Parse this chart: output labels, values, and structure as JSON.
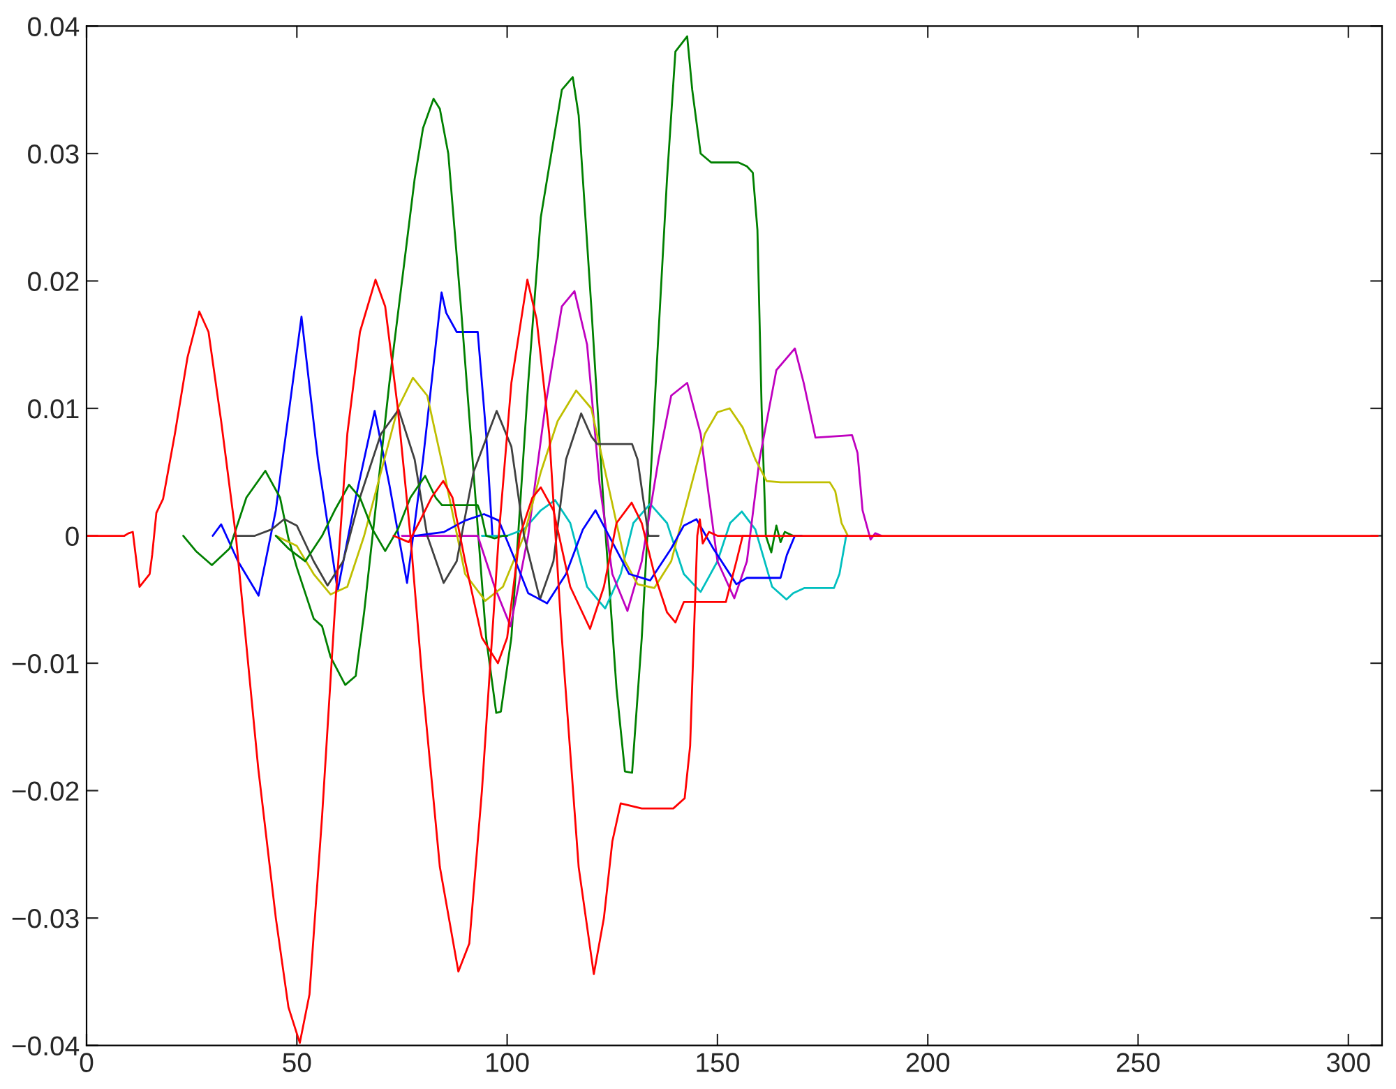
{
  "chart_data": {
    "type": "line",
    "xlim": [
      0,
      308
    ],
    "ylim": [
      -0.04,
      0.04
    ],
    "xticks": [
      0,
      50,
      100,
      150,
      200,
      250,
      300
    ],
    "yticks": [
      {
        "value": -0.04,
        "label": "−0.04"
      },
      {
        "value": -0.03,
        "label": "−0.03"
      },
      {
        "value": -0.02,
        "label": "−0.02"
      },
      {
        "value": -0.01,
        "label": "−0.01"
      },
      0,
      0.01,
      0.02,
      0.03,
      0.04
    ],
    "series": [
      {
        "color": "#0000ff",
        "x": [
          30,
          32,
          36,
          40.9,
          45,
          51.1,
          55,
          59.7,
          64,
          68.5,
          72,
          76.2,
          80,
          84.4,
          85.5,
          88,
          93,
          95,
          96.5
        ],
        "values": [
          0,
          0.0009,
          -0.002,
          -0.0047,
          0.002,
          0.0172,
          0.006,
          -0.0043,
          0.003,
          0.0098,
          0.004,
          -0.0037,
          0.006,
          0.0191,
          0.0175,
          0.016,
          0.016,
          0.008,
          0
        ]
      },
      {
        "color": "#008000",
        "x": [
          23,
          26,
          29.8,
          34,
          38,
          42.5,
          46,
          48,
          50,
          52,
          54,
          56,
          58,
          61.5,
          64,
          66,
          68,
          72,
          75,
          78,
          80,
          82.5,
          84,
          86,
          89,
          92,
          95,
          97.4,
          98.5,
          101,
          105,
          108,
          110,
          113,
          115.6,
          117,
          120,
          123,
          126,
          128,
          129.7,
          132,
          135,
          138,
          140,
          142.8,
          144,
          146,
          148.5,
          152,
          155,
          157,
          158.4,
          159.5,
          160.5,
          161.5,
          162.8,
          164,
          165,
          166,
          168,
          170
        ],
        "values": [
          0,
          -0.0012,
          -0.0023,
          -0.001,
          0.003,
          0.0051,
          0.003,
          -0.0002,
          -0.0025,
          -0.0045,
          -0.0065,
          -0.0071,
          -0.0095,
          -0.0117,
          -0.011,
          -0.006,
          0,
          0.012,
          0.02,
          0.028,
          0.032,
          0.0343,
          0.0335,
          0.03,
          0.018,
          0.005,
          -0.008,
          -0.0139,
          -0.0138,
          -0.008,
          0.012,
          0.025,
          0.029,
          0.035,
          0.036,
          0.033,
          0.018,
          0.002,
          -0.012,
          -0.0185,
          -0.0186,
          -0.008,
          0.01,
          0.028,
          0.038,
          0.0392,
          0.035,
          0.03,
          0.0293,
          0.0293,
          0.0293,
          0.029,
          0.0285,
          0.024,
          0.01,
          0,
          -0.0013,
          0.0008,
          -0.0005,
          0.0003,
          0,
          0
        ]
      },
      {
        "color": "#00bfbf",
        "x": [
          94,
          100,
          104,
          108,
          111.4,
          115,
          119,
          123.3,
          127,
          130,
          134,
          138,
          142,
          146,
          150,
          153,
          155.8,
          159,
          163,
          166.4,
          168,
          170.7,
          177.7,
          179,
          180.6
        ],
        "values": [
          0,
          0,
          0.0005,
          0.002,
          0.0028,
          0.001,
          -0.004,
          -0.0057,
          -0.003,
          0.001,
          0.0025,
          0.001,
          -0.003,
          -0.0044,
          -0.002,
          0.001,
          0.0019,
          0.0005,
          -0.004,
          -0.005,
          -0.0045,
          -0.0041,
          -0.0041,
          -0.003,
          0
        ]
      },
      {
        "color": "#bf00bf",
        "x": [
          75,
          93,
          97,
          100.8,
          105,
          109,
          113,
          116,
          119,
          122,
          125,
          128.6,
          132,
          136,
          139,
          142.8,
          146,
          150,
          154,
          157,
          160,
          164,
          168.4,
          170.5,
          173.3,
          182,
          183.3,
          184.5,
          186.4,
          187.5,
          189
        ],
        "values": [
          0,
          0,
          -0.004,
          -0.0071,
          0,
          0.01,
          0.018,
          0.0192,
          0.015,
          0.004,
          -0.003,
          -0.0059,
          -0.002,
          0.006,
          0.011,
          0.012,
          0.008,
          -0.002,
          -0.0049,
          -0.002,
          0.006,
          0.013,
          0.0147,
          0.012,
          0.0077,
          0.0079,
          0.0065,
          0.002,
          -0.0003,
          0.0002,
          0
        ]
      },
      {
        "color": "#bfbf00",
        "x": [
          45,
          50,
          54,
          58,
          62,
          66,
          70,
          74,
          77.6,
          81,
          85,
          90,
          94.8,
          99,
          104,
          108,
          112,
          116.4,
          120,
          124,
          128,
          131,
          135,
          139,
          143,
          147,
          150,
          152.9,
          156,
          159,
          161.7,
          165,
          176.7,
          178,
          179.5,
          181
        ],
        "values": [
          0,
          -0.0008,
          -0.003,
          -0.0046,
          -0.004,
          0,
          0.005,
          0.01,
          0.0124,
          0.011,
          0.005,
          -0.003,
          -0.0051,
          -0.004,
          0,
          0.005,
          0.009,
          0.0114,
          0.01,
          0.004,
          -0.002,
          -0.0038,
          -0.0041,
          -0.002,
          0.003,
          0.008,
          0.0097,
          0.01,
          0.0085,
          0.006,
          0.0043,
          0.0042,
          0.0042,
          0.0035,
          0.001,
          0
        ]
      },
      {
        "color": "#404040",
        "x": [
          35,
          40,
          44,
          47,
          50,
          54,
          57.3,
          61,
          65,
          70,
          74.2,
          78,
          81,
          84.9,
          88,
          92,
          97.5,
          101,
          104,
          107.8,
          111,
          114,
          117.6,
          120,
          121.4,
          129.7,
          131,
          133.6,
          136
        ],
        "values": [
          0,
          0,
          0.0005,
          0.0013,
          0.0008,
          -0.002,
          -0.0039,
          -0.002,
          0.003,
          0.008,
          0.0099,
          0.006,
          0,
          -0.0037,
          -0.002,
          0.005,
          0.0098,
          0.007,
          0,
          -0.005,
          -0.002,
          0.006,
          0.0096,
          0.0078,
          0.0072,
          0.0072,
          0.006,
          0,
          0
        ]
      },
      {
        "color": "#0000ff",
        "x": [
          78,
          85,
          90,
          94.5,
          98,
          102,
          105,
          109.5,
          114,
          118,
          121,
          125,
          129,
          134,
          139,
          142,
          145,
          149,
          154.5,
          157,
          165,
          166.5,
          168.4,
          170
        ],
        "values": [
          0,
          0.0003,
          0.0012,
          0.0017,
          0.0012,
          -0.002,
          -0.0045,
          -0.0053,
          -0.003,
          0.0005,
          0.002,
          -0.0005,
          -0.003,
          -0.0035,
          -0.001,
          0.0008,
          0.0013,
          -0.001,
          -0.0038,
          -0.0033,
          -0.0033,
          -0.0015,
          0,
          0
        ]
      },
      {
        "color": "#008000",
        "x": [
          45,
          48,
          52,
          56,
          59,
          62.4,
          65,
          68,
          71,
          74,
          77,
          80.5,
          83,
          84.5,
          93,
          94,
          95,
          97,
          99,
          100
        ],
        "values": [
          0,
          -0.001,
          -0.002,
          0,
          0.002,
          0.004,
          0.003,
          0.0005,
          -0.0012,
          0.0005,
          0.003,
          0.0047,
          0.003,
          0.0024,
          0.0024,
          0.0015,
          0,
          -0.0002,
          0,
          0
        ]
      },
      {
        "color": "#ff0000",
        "x": [
          73,
          76.6,
          79,
          82,
          84.8,
          87,
          90,
          94,
          97.8,
          100,
          103,
          106,
          108,
          111,
          115,
          119.7,
          123,
          126,
          129.6,
          132,
          135,
          138,
          140,
          142,
          152,
          154.5,
          156,
          158
        ],
        "values": [
          0,
          -0.0005,
          0.001,
          0.003,
          0.0043,
          0.003,
          -0.002,
          -0.008,
          -0.01,
          -0.008,
          0,
          0.003,
          0.0038,
          0.002,
          -0.004,
          -0.0073,
          -0.004,
          0.001,
          0.0026,
          0.001,
          -0.003,
          -0.006,
          -0.0068,
          -0.0052,
          -0.0052,
          -0.002,
          0,
          0
        ]
      },
      {
        "color": "#ff0000",
        "x": [
          0,
          9,
          10,
          11,
          12.6,
          15,
          15.6,
          16.6,
          18.2,
          21,
          24,
          26.8,
          29,
          32,
          35.5,
          40.8,
          45,
          48,
          50.7,
          53,
          56,
          59,
          62,
          65,
          68.7,
          71,
          74,
          77,
          80,
          84,
          88.4,
          91,
          94,
          98,
          101,
          104.8,
          107,
          110,
          113,
          117,
          120.6,
          123,
          125,
          127,
          132,
          139.5,
          142.2,
          143.5,
          145.2,
          145.8,
          146.5,
          148,
          150,
          307
        ],
        "values": [
          0,
          0,
          0.0002,
          0.0003,
          -0.004,
          -0.003,
          -0.0015,
          0.0018,
          0.0029,
          0.008,
          0.014,
          0.0176,
          0.016,
          0.009,
          0,
          -0.0182,
          -0.03,
          -0.037,
          -0.0398,
          -0.036,
          -0.022,
          -0.006,
          0.008,
          0.016,
          0.0201,
          0.018,
          0.01,
          0,
          -0.012,
          -0.026,
          -0.0342,
          -0.032,
          -0.02,
          0,
          0.012,
          0.0201,
          0.017,
          0.008,
          -0.008,
          -0.026,
          -0.0344,
          -0.03,
          -0.024,
          -0.021,
          -0.0214,
          -0.0214,
          -0.0206,
          -0.0165,
          0,
          0.0013,
          -0.0006,
          0.0003,
          0,
          0
        ]
      }
    ]
  }
}
